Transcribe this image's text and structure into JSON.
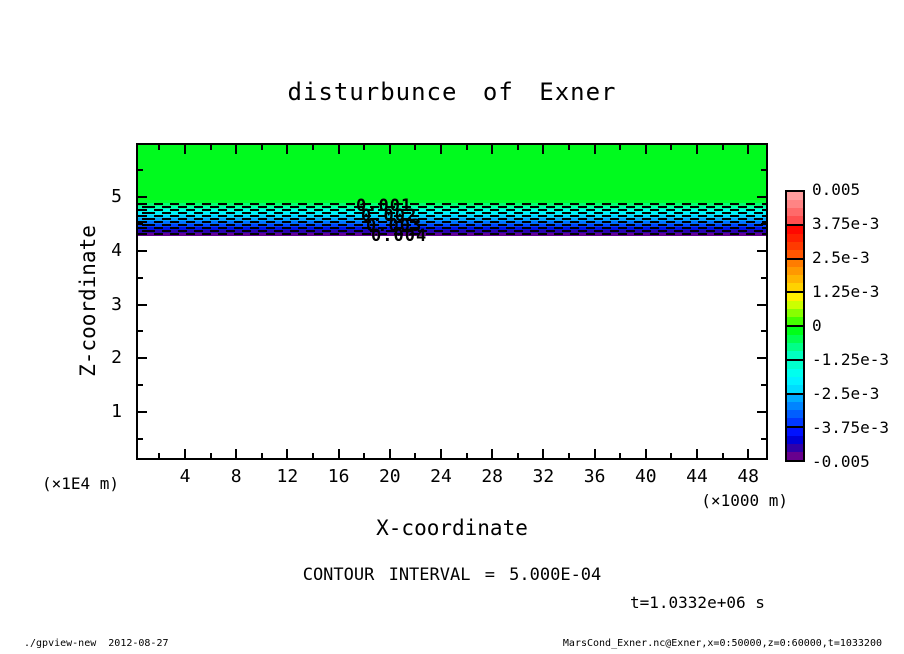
{
  "title": "disturbunce of Exner",
  "axes": {
    "y_label": "Z-coordinate",
    "y_unit": "(×1E4 m)",
    "y_ticks": [
      5,
      4,
      3,
      2,
      1
    ],
    "x_label": "X-coordinate",
    "x_unit": "(×1000 m)",
    "x_ticks": [
      4,
      8,
      12,
      16,
      20,
      24,
      28,
      32,
      36,
      40,
      44,
      48
    ]
  },
  "plot": {
    "green_fill": "#00fa1e",
    "band_strip_colors": [
      "#00ff30",
      "#00ff70",
      "#00ffb0",
      "#00ffe8",
      "#00f0ff",
      "#00ccff",
      "#00a0ff",
      "#0070ff",
      "#0040ff",
      "#0010e0",
      "#2a00b0",
      "#600090"
    ],
    "dashed_line_count": 11,
    "contour_labels": [
      "0.001",
      "0.002",
      "0.003",
      "0.004"
    ]
  },
  "colorbar": {
    "labels": [
      "0.005",
      "3.75e-3",
      "2.5e-3",
      "1.25e-3",
      "0",
      "-1.25e-3",
      "-2.5e-3",
      "-3.75e-3",
      "-0.005"
    ],
    "cells": [
      [
        "#ff9d9d",
        "#ff8484",
        "#ff6a6a",
        "#ff5050"
      ],
      [
        "#ff0800",
        "#ff2000",
        "#ff3a00",
        "#ff5600"
      ],
      [
        "#ff7c00",
        "#ff9800",
        "#ffb400",
        "#ffd200"
      ],
      [
        "#fff000",
        "#ccff00",
        "#88ff00",
        "#44ff00"
      ],
      [
        "#00ff18",
        "#00ff50",
        "#00ff88",
        "#00ffc0"
      ],
      [
        "#00ffcc",
        "#00ffee",
        "#00f2ff",
        "#00dcff"
      ],
      [
        "#00aaff",
        "#0084ff",
        "#005eff",
        "#0038ff"
      ],
      [
        "#0012ff",
        "#0000d8",
        "#3000a8",
        "#68008e"
      ]
    ]
  },
  "annotations": {
    "contour_interval": "CONTOUR INTERVAL = 5.000E-04",
    "time": "t=1.0332e+06 s"
  },
  "footer": {
    "left": "./gpview-new  2012-08-27",
    "right": "MarsCond_Exner.nc@Exner,x=0:50000,z=0:60000,t=1033200"
  },
  "chart_data": {
    "type": "contour",
    "title": "disturbunce of Exner",
    "xlabel": "X-coordinate (×1000 m)",
    "ylabel": "Z-coordinate (×1E4 m)",
    "x_range_m": [
      0,
      50000
    ],
    "z_range_m": [
      0,
      60000
    ],
    "x_tick_values": [
      4,
      8,
      12,
      16,
      20,
      24,
      28,
      32,
      36,
      40,
      44,
      48
    ],
    "z_tick_values": [
      1,
      2,
      3,
      4,
      5
    ],
    "contour_interval": 0.0005,
    "time_s": 1033200,
    "colorbar_levels": [
      0.005,
      0.00375,
      0.0025,
      0.00125,
      0,
      -0.00125,
      -0.0025,
      -0.00375,
      -0.005
    ],
    "dashed_contour_levels": [
      -0.0005,
      -0.001,
      -0.0015,
      -0.002,
      -0.0025,
      -0.003,
      -0.0035,
      -0.004,
      -0.0045,
      -0.005,
      -0.0055
    ],
    "field_profile": [
      {
        "z_x1e4m": [
          4.9,
          6.0
        ],
        "value": 0,
        "color": "green"
      },
      {
        "z_x1e4m": [
          4.25,
          4.9
        ],
        "value": "0 decreasing to -0.005 downward",
        "color": "green-cyan-blue-purple gradient with dashed contour lines"
      },
      {
        "z_x1e4m": [
          0.0,
          4.25
        ],
        "value": "blank (no shading)",
        "color": "white"
      }
    ]
  }
}
